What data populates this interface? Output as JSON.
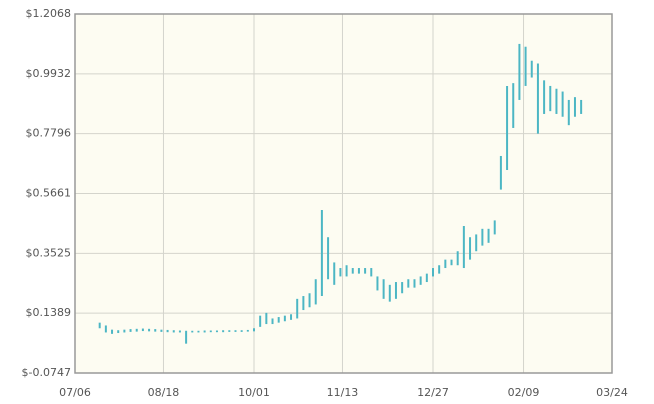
{
  "chart_data": {
    "type": "hilo",
    "color": "#4cb6c4",
    "grid": true,
    "x": [
      "07/18",
      "07/21",
      "07/24",
      "07/27",
      "07/30",
      "08/02",
      "08/05",
      "08/08",
      "08/11",
      "08/14",
      "08/17",
      "08/20",
      "08/23",
      "08/26",
      "08/29",
      "09/01",
      "09/04",
      "09/07",
      "09/10",
      "09/13",
      "09/16",
      "09/19",
      "09/22",
      "09/25",
      "09/28",
      "10/01",
      "10/04",
      "10/07",
      "10/10",
      "10/13",
      "10/16",
      "10/19",
      "10/22",
      "10/25",
      "10/28",
      "10/31",
      "11/03",
      "11/06",
      "11/09",
      "11/12",
      "11/15",
      "11/18",
      "11/21",
      "11/24",
      "11/27",
      "11/30",
      "12/03",
      "12/06",
      "12/09",
      "12/12",
      "12/15",
      "12/18",
      "12/21",
      "12/24",
      "12/27",
      "12/30",
      "01/02",
      "01/05",
      "01/08",
      "01/11",
      "01/14",
      "01/17",
      "01/20",
      "01/23",
      "01/26",
      "01/29",
      "02/01",
      "02/04",
      "02/07",
      "02/10",
      "02/13",
      "02/16",
      "02/19",
      "02/22",
      "02/25",
      "02/28",
      "03/03",
      "03/06",
      "03/09"
    ],
    "low": [
      0.085,
      0.07,
      0.065,
      0.068,
      0.07,
      0.072,
      0.073,
      0.075,
      0.074,
      0.073,
      0.072,
      0.071,
      0.07,
      0.07,
      0.03,
      0.07,
      0.07,
      0.07,
      0.071,
      0.071,
      0.071,
      0.072,
      0.072,
      0.072,
      0.073,
      0.074,
      0.09,
      0.1,
      0.1,
      0.105,
      0.11,
      0.115,
      0.12,
      0.15,
      0.16,
      0.17,
      0.2,
      0.26,
      0.24,
      0.27,
      0.27,
      0.28,
      0.28,
      0.28,
      0.27,
      0.22,
      0.19,
      0.18,
      0.19,
      0.21,
      0.23,
      0.23,
      0.24,
      0.25,
      0.27,
      0.28,
      0.3,
      0.31,
      0.31,
      0.3,
      0.33,
      0.36,
      0.38,
      0.39,
      0.42,
      0.58,
      0.65,
      0.8,
      0.9,
      0.95,
      0.98,
      0.78,
      0.85,
      0.86,
      0.85,
      0.84,
      0.81,
      0.84,
      0.85
    ],
    "high": [
      0.105,
      0.095,
      0.08,
      0.078,
      0.08,
      0.082,
      0.083,
      0.084,
      0.083,
      0.082,
      0.08,
      0.079,
      0.078,
      0.077,
      0.076,
      0.076,
      0.076,
      0.077,
      0.077,
      0.077,
      0.078,
      0.078,
      0.078,
      0.078,
      0.079,
      0.085,
      0.13,
      0.14,
      0.12,
      0.125,
      0.13,
      0.135,
      0.19,
      0.2,
      0.21,
      0.26,
      0.507,
      0.41,
      0.32,
      0.3,
      0.31,
      0.3,
      0.3,
      0.3,
      0.3,
      0.27,
      0.26,
      0.24,
      0.25,
      0.25,
      0.26,
      0.26,
      0.27,
      0.28,
      0.3,
      0.31,
      0.33,
      0.33,
      0.36,
      0.45,
      0.41,
      0.42,
      0.44,
      0.44,
      0.47,
      0.7,
      0.95,
      0.96,
      1.1,
      1.09,
      1.04,
      1.03,
      0.97,
      0.95,
      0.94,
      0.93,
      0.9,
      0.91,
      0.9
    ],
    "xlim": [
      "07/06",
      "03/24"
    ],
    "xticks": [
      "07/06",
      "08/18",
      "10/01",
      "11/13",
      "12/27",
      "02/09",
      "03/24"
    ],
    "ylim": [
      -0.0747,
      1.2068
    ],
    "yticks": [
      {
        "value": -0.0747,
        "label": "$-0.0747"
      },
      {
        "value": 0.1389,
        "label": "$0.1389"
      },
      {
        "value": 0.3525,
        "label": "$0.3525"
      },
      {
        "value": 0.5661,
        "label": "$0.5661"
      },
      {
        "value": 0.7796,
        "label": "$0.7796"
      },
      {
        "value": 0.9932,
        "label": "$0.9932"
      },
      {
        "value": 1.2068,
        "label": "$1.2068"
      }
    ]
  }
}
